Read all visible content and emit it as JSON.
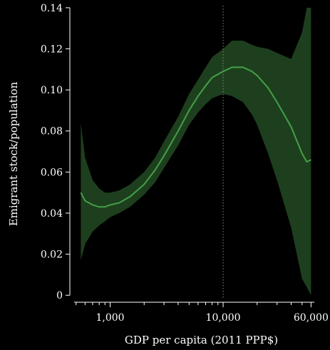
{
  "chart_data": {
    "type": "line",
    "title": "",
    "xlabel": "GDP per capita (2011 PPP$)",
    "ylabel": "Emigrant stock/population",
    "x_scale": "log",
    "xlim": [
      480,
      68000
    ],
    "ylim": [
      -0.002,
      0.141
    ],
    "x_ticks": [
      {
        "value": 1000,
        "label": "1,000"
      },
      {
        "value": 10000,
        "label": "10,000"
      },
      {
        "value": 60000,
        "label": "60,000"
      }
    ],
    "y_ticks": [
      {
        "value": 0,
        "label": "0"
      },
      {
        "value": 0.02,
        "label": "0.02"
      },
      {
        "value": 0.04,
        "label": "0.04"
      },
      {
        "value": 0.06,
        "label": "0.06"
      },
      {
        "value": 0.08,
        "label": "0.08"
      },
      {
        "value": 0.1,
        "label": "0.10"
      },
      {
        "value": 0.12,
        "label": "0.12"
      },
      {
        "value": 0.14,
        "label": "0.14"
      }
    ],
    "reference_line": {
      "x": 10000,
      "style": "dotted"
    },
    "grid": false,
    "legend": "none",
    "colors": {
      "line": "#43a047",
      "band": "#1e3f1e",
      "ref_line": "#8a8a8a",
      "axis": "#ffffff"
    },
    "series": [
      {
        "x": [
          550,
          600,
          700,
          800,
          900,
          1000,
          1200,
          1500,
          2000,
          2500,
          3000,
          4000,
          5000,
          6000,
          7000,
          8000,
          10000,
          12000,
          15000,
          18000,
          20000,
          25000,
          30000,
          40000,
          50000,
          55000,
          60000
        ],
        "y": [
          0.05,
          0.046,
          0.044,
          0.043,
          0.043,
          0.044,
          0.045,
          0.048,
          0.054,
          0.061,
          0.068,
          0.08,
          0.09,
          0.097,
          0.102,
          0.106,
          0.109,
          0.111,
          0.111,
          0.109,
          0.107,
          0.101,
          0.094,
          0.082,
          0.069,
          0.065,
          0.066
        ],
        "lower": [
          0.017,
          0.025,
          0.031,
          0.034,
          0.036,
          0.038,
          0.04,
          0.043,
          0.049,
          0.055,
          0.062,
          0.073,
          0.083,
          0.089,
          0.093,
          0.096,
          0.098,
          0.097,
          0.094,
          0.088,
          0.083,
          0.069,
          0.056,
          0.033,
          0.008,
          0.004,
          0.0
        ],
        "upper": [
          0.084,
          0.067,
          0.056,
          0.052,
          0.05,
          0.05,
          0.051,
          0.054,
          0.06,
          0.067,
          0.075,
          0.087,
          0.098,
          0.105,
          0.111,
          0.116,
          0.12,
          0.124,
          0.124,
          0.122,
          0.121,
          0.12,
          0.118,
          0.115,
          0.128,
          0.14,
          0.14
        ]
      }
    ]
  }
}
